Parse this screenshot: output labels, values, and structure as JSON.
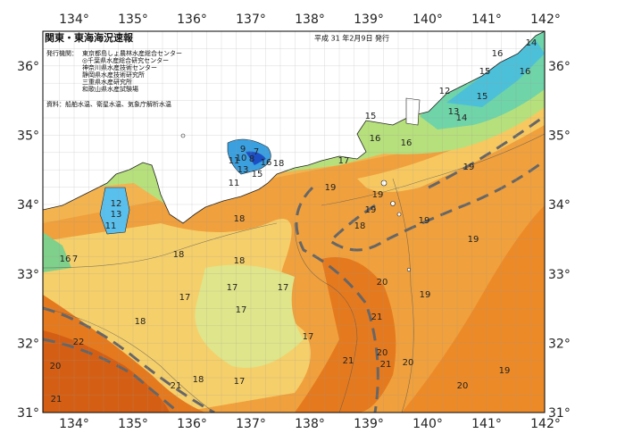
{
  "header": {
    "title": "関東・東海海況速報",
    "date": "平成 31 年2月9日 発行",
    "issuer_label": "発行機関：",
    "issuers": [
      "東京都島しょ農林水産総合センター",
      "◎千葉県水産総合研究センター",
      "神奈川県水産技術センター",
      "静岡県水産技術研究所",
      "三重県水産研究所",
      "和歌山県水産試験場"
    ],
    "source": "資料：船舶水温、衛星水温、気象庁解析水温"
  },
  "map": {
    "lon_labels": [
      "134°",
      "135°",
      "136°",
      "137°",
      "138°",
      "139°",
      "140°",
      "141°",
      "142°"
    ],
    "lat_labels": [
      "36°",
      "35°",
      "34°",
      "33°",
      "32°",
      "31°"
    ],
    "contour_labels": [
      "16",
      "14",
      "16",
      "15",
      "12",
      "15",
      "13",
      "14",
      "15",
      "16",
      "16",
      "17",
      "19",
      "19",
      "19",
      "19",
      "18",
      "19",
      "19",
      "18",
      "18",
      "18",
      "17",
      "17",
      "17",
      "17",
      "18",
      "17",
      "20",
      "21",
      "21",
      "21",
      "20",
      "19",
      "19",
      "20",
      "22",
      "20",
      "21",
      "21",
      "18",
      "17",
      "9",
      "7",
      "10",
      "8",
      "11",
      "13",
      "15",
      "16",
      "18",
      "12",
      "13",
      "11",
      "16",
      "7",
      "20",
      "11"
    ]
  }
}
